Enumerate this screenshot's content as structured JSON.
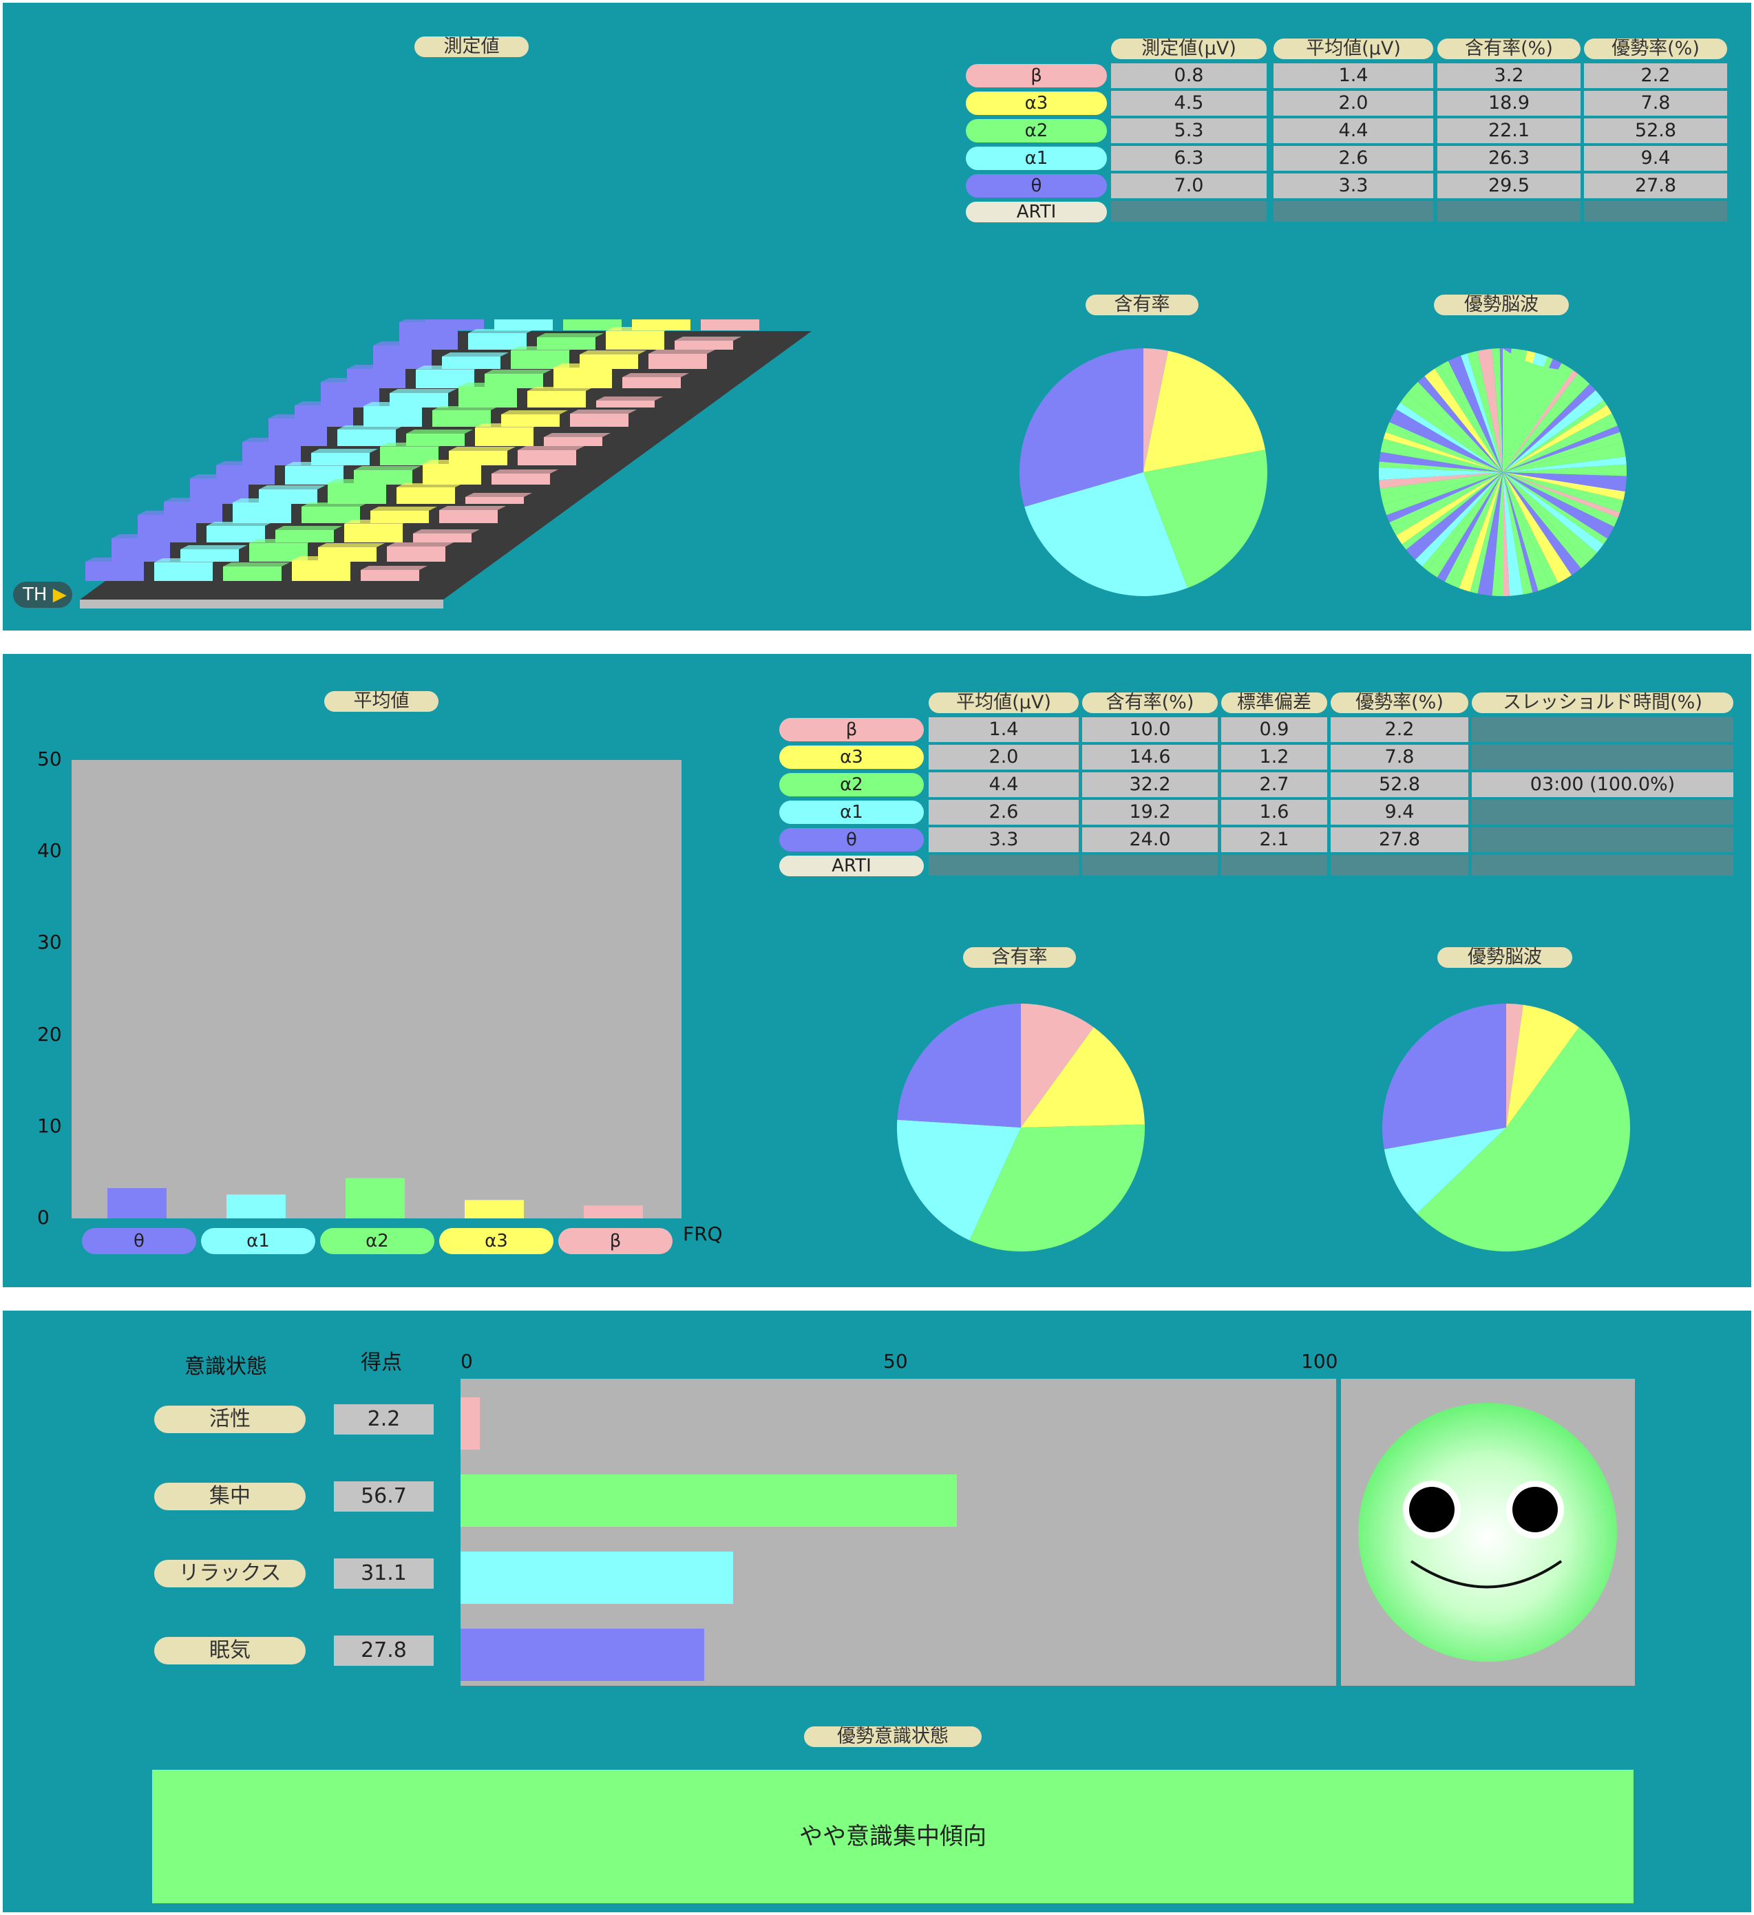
{
  "colors": {
    "beta": "#f5b7b9",
    "alpha3": "#ffff66",
    "alpha2": "#80ff80",
    "alpha1": "#88ffff",
    "theta": "#8181f7",
    "arti": "#ece8d6",
    "panel": "#149aa6"
  },
  "panel1": {
    "title": "測定値",
    "th_label": "TH",
    "table": {
      "headers": [
        "測定値(μV)",
        "平均値(μV)",
        "含有率(%)",
        "優勢率(%)"
      ],
      "rows": [
        {
          "band": "β",
          "values": [
            "0.8",
            "1.4",
            "3.2",
            "2.2"
          ]
        },
        {
          "band": "α3",
          "values": [
            "4.5",
            "2.0",
            "18.9",
            "7.8"
          ]
        },
        {
          "band": "α2",
          "values": [
            "5.3",
            "4.4",
            "22.1",
            "52.8"
          ]
        },
        {
          "band": "α1",
          "values": [
            "6.3",
            "2.6",
            "26.3",
            "9.4"
          ]
        },
        {
          "band": "θ",
          "values": [
            "7.0",
            "3.3",
            "29.5",
            "27.8"
          ]
        },
        {
          "band": "ARTI",
          "values": [
            "",
            "",
            "",
            ""
          ]
        }
      ]
    },
    "pie1_title": "含有率",
    "pie2_title": "優勢脳波",
    "pie1": [
      3.2,
      18.9,
      22.1,
      26.3,
      29.5
    ]
  },
  "panel2": {
    "title": "平均値",
    "xlabel": "FRQ",
    "table": {
      "headers": [
        "平均値(μV)",
        "含有率(%)",
        "標準偏差",
        "優勢率(%)",
        "スレッショルド時間(%)"
      ],
      "rows": [
        {
          "band": "β",
          "values": [
            "1.4",
            "10.0",
            "0.9",
            "2.2",
            ""
          ]
        },
        {
          "band": "α3",
          "values": [
            "2.0",
            "14.6",
            "1.2",
            "7.8",
            ""
          ]
        },
        {
          "band": "α2",
          "values": [
            "4.4",
            "32.2",
            "2.7",
            "52.8",
            "03:00 (100.0%)"
          ]
        },
        {
          "band": "α1",
          "values": [
            "2.6",
            "19.2",
            "1.6",
            "9.4",
            ""
          ]
        },
        {
          "band": "θ",
          "values": [
            "3.3",
            "24.0",
            "2.1",
            "27.8",
            ""
          ]
        },
        {
          "band": "ARTI",
          "values": [
            "",
            "",
            "",
            "",
            ""
          ]
        }
      ]
    },
    "pie1_title": "含有率",
    "pie2_title": "優勢脳波",
    "pie1": [
      10.0,
      14.6,
      32.2,
      19.2,
      24.0
    ],
    "pie2": [
      2.2,
      7.8,
      52.8,
      9.4,
      27.8
    ]
  },
  "chart_data": {
    "type": "bar",
    "title": "平均値",
    "categories": [
      "θ",
      "α1",
      "α2",
      "α3",
      "β"
    ],
    "values": [
      3.3,
      2.6,
      4.4,
      2.0,
      1.4
    ],
    "xlabel": "FRQ",
    "ylabel": "",
    "ylim": [
      0,
      50
    ],
    "yticks": [
      "0",
      "10",
      "20",
      "30",
      "40",
      "50"
    ]
  },
  "panel3": {
    "col_state": "意識状態",
    "col_score": "得点",
    "axis_ticks": [
      "0",
      "50",
      "100"
    ],
    "states": [
      {
        "label": "活性",
        "score": "2.2",
        "value": 2.2
      },
      {
        "label": "集中",
        "score": "56.7",
        "value": 56.7
      },
      {
        "label": "リラックス",
        "score": "31.1",
        "value": 31.1
      },
      {
        "label": "眠気",
        "score": "27.8",
        "value": 27.8
      }
    ],
    "dominant_title": "優勢意識状態",
    "dominant_text": "やや意識集中傾向"
  }
}
